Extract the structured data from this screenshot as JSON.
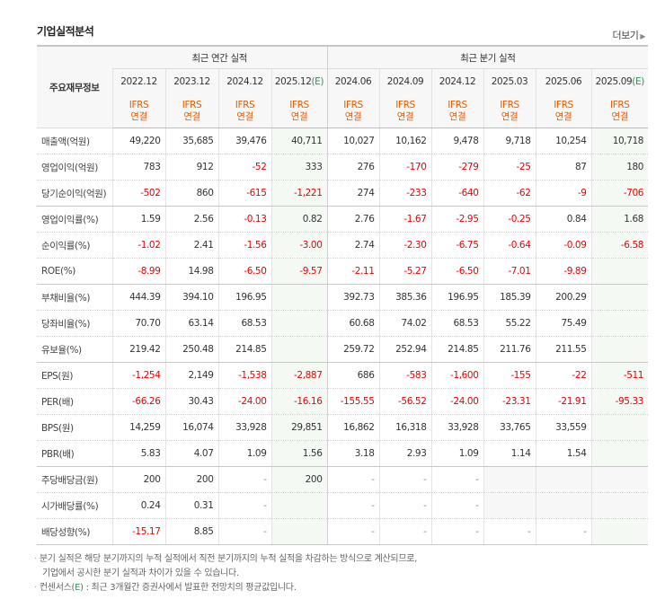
{
  "section_title": "기업실적분석",
  "more_label": "더보기",
  "table": {
    "row_header": "주요재무정보",
    "annual_label": "최근 연간 실적",
    "quarter_label": "최근 분기 실적",
    "periods": [
      {
        "label": "2022.12",
        "est": ""
      },
      {
        "label": "2023.12",
        "est": ""
      },
      {
        "label": "2024.12",
        "est": ""
      },
      {
        "label": "2025.12",
        "est": "(E)"
      },
      {
        "label": "2024.06",
        "est": ""
      },
      {
        "label": "2024.09",
        "est": ""
      },
      {
        "label": "2024.12",
        "est": ""
      },
      {
        "label": "2025.03",
        "est": ""
      },
      {
        "label": "2025.06",
        "est": ""
      },
      {
        "label": "2025.09",
        "est": "(E)"
      }
    ],
    "ifrs_top": "IFRS",
    "ifrs_bottom": "연결",
    "rows": [
      {
        "label": "매출액(억원)",
        "values": [
          "49,220",
          "35,685",
          "39,476",
          "40,711",
          "10,027",
          "10,162",
          "9,478",
          "9,718",
          "10,254",
          "10,718"
        ]
      },
      {
        "label": "영업이익(억원)",
        "values": [
          "783",
          "912",
          "-52",
          "333",
          "276",
          "-170",
          "-279",
          "-25",
          "87",
          "180"
        ]
      },
      {
        "label": "당기순이익(억원)",
        "values": [
          "-502",
          "860",
          "-615",
          "-1,221",
          "274",
          "-233",
          "-640",
          "-62",
          "-9",
          "-706"
        ]
      },
      {
        "label": "영업이익률(%)",
        "values": [
          "1.59",
          "2.56",
          "-0.13",
          "0.82",
          "2.76",
          "-1.67",
          "-2.95",
          "-0.25",
          "0.84",
          "1.68"
        ]
      },
      {
        "label": "순이익률(%)",
        "values": [
          "-1.02",
          "2.41",
          "-1.56",
          "-3.00",
          "2.74",
          "-2.30",
          "-6.75",
          "-0.64",
          "-0.09",
          "-6.58"
        ]
      },
      {
        "label": "ROE(%)",
        "values": [
          "-8.99",
          "14.98",
          "-6.50",
          "-9.57",
          "-2.11",
          "-5.27",
          "-6.50",
          "-7.01",
          "-9.89",
          ""
        ]
      },
      {
        "label": "부채비율(%)",
        "values": [
          "444.39",
          "394.10",
          "196.95",
          "",
          "392.73",
          "385.36",
          "196.95",
          "185.39",
          "200.29",
          ""
        ]
      },
      {
        "label": "당좌비율(%)",
        "values": [
          "70.70",
          "63.14",
          "68.53",
          "",
          "60.68",
          "74.02",
          "68.53",
          "55.22",
          "75.49",
          ""
        ]
      },
      {
        "label": "유보율(%)",
        "values": [
          "219.42",
          "250.48",
          "214.85",
          "",
          "259.72",
          "252.94",
          "214.85",
          "211.76",
          "211.55",
          ""
        ]
      },
      {
        "label": "EPS(원)",
        "values": [
          "-1,254",
          "2,149",
          "-1,538",
          "-2,887",
          "686",
          "-583",
          "-1,600",
          "-155",
          "-22",
          "-511"
        ]
      },
      {
        "label": "PER(배)",
        "values": [
          "-66.26",
          "30.43",
          "-24.00",
          "-16.16",
          "-155.55",
          "-56.52",
          "-24.00",
          "-23.31",
          "-21.91",
          "-95.33"
        ]
      },
      {
        "label": "BPS(원)",
        "values": [
          "14,259",
          "16,074",
          "33,928",
          "29,851",
          "16,862",
          "16,318",
          "33,928",
          "33,765",
          "33,559",
          ""
        ]
      },
      {
        "label": "PBR(배)",
        "values": [
          "5.83",
          "4.07",
          "1.09",
          "1.56",
          "3.18",
          "2.93",
          "1.09",
          "1.14",
          "1.54",
          ""
        ]
      },
      {
        "label": "주당배당금(원)",
        "values": [
          "200",
          "200",
          "-",
          "200",
          "-",
          "-",
          "-",
          "",
          "",
          ""
        ]
      },
      {
        "label": "시가배당률(%)",
        "values": [
          "0.24",
          "0.31",
          "-",
          "",
          "-",
          "-",
          "-",
          "",
          "",
          ""
        ]
      },
      {
        "label": "배당성향(%)",
        "values": [
          "-15.17",
          "8.85",
          "-",
          "",
          "-",
          "-",
          "-",
          "-",
          "-",
          ""
        ]
      }
    ],
    "blank_cells": [
      [
        13,
        7
      ],
      [
        13,
        8
      ],
      [
        13,
        9
      ],
      [
        14,
        7
      ],
      [
        14,
        8
      ],
      [
        14,
        9
      ]
    ]
  },
  "notes": {
    "line1": "분기 실적은 해당 분기까지의 누적 실적에서 직전 분기까지의 누적 실적을 차감하는 방식으로 계산되므로,",
    "line2": "기업에서 공시한 분기 실적과 차이가 있을 수 있습니다.",
    "line3_pre": "컨센서스(",
    "line3_e": "E",
    "line3_post": ") : 최근 3개월간 증권사에서 발표한 전망치의 평균값입니다."
  },
  "colors": {
    "negative": "#e00000",
    "ifrs": "#e65c00",
    "estimate": "#3a8a5c",
    "header_bg": "#f7f7f7",
    "estimate_bg": "#f4f9f4"
  }
}
